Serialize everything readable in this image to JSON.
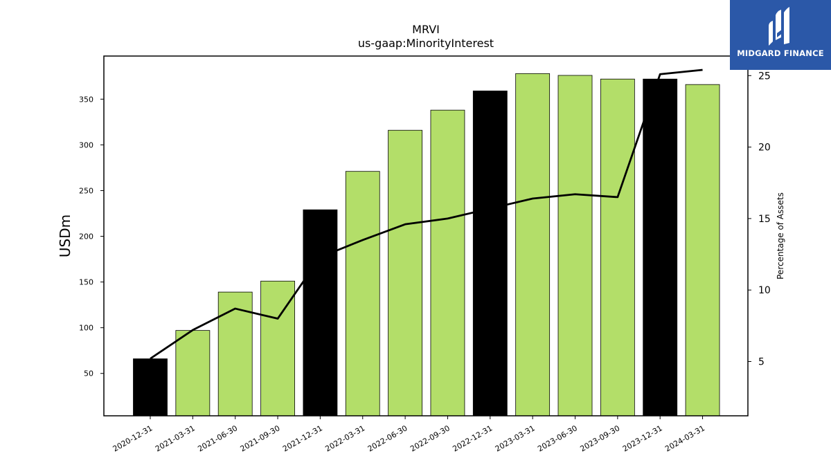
{
  "chart_data": {
    "type": "bar",
    "title": "MRVI",
    "subtitle": "us-gaap:MinorityInterest",
    "ylabel": "USDm",
    "y2label": "Percentage of Assets",
    "categories": [
      "2020-12-31",
      "2021-03-31",
      "2021-06-30",
      "2021-09-30",
      "2021-12-31",
      "2022-03-31",
      "2022-06-30",
      "2022-09-30",
      "2022-12-31",
      "2023-03-31",
      "2023-06-30",
      "2023-09-30",
      "2023-12-31",
      "2024-03-31"
    ],
    "series": [
      {
        "type": "bar",
        "values": [
          66,
          97,
          139,
          151,
          229,
          271,
          316,
          338,
          359,
          378,
          376,
          372,
          372,
          366
        ],
        "highlight": [
          true,
          false,
          false,
          false,
          true,
          false,
          false,
          false,
          true,
          false,
          false,
          false,
          true,
          false
        ]
      },
      {
        "type": "line",
        "axis": "right",
        "values": [
          5.2,
          7.2,
          8.7,
          8.0,
          12.3,
          13.5,
          14.6,
          15.0,
          15.7,
          16.4,
          16.7,
          16.5,
          25.1,
          25.4
        ]
      }
    ],
    "ylim": [
      0,
      400
    ],
    "y2lim": [
      1.1,
      26.3
    ],
    "yticks": [
      50,
      100,
      150,
      200,
      250,
      300,
      350
    ],
    "y2ticks": [
      5,
      10,
      15,
      20,
      25
    ],
    "colors": {
      "bar": "#b3de69",
      "highlight": "#000000",
      "line": "#000000"
    }
  },
  "logo": {
    "text": "MIDGARD FINANCE"
  }
}
